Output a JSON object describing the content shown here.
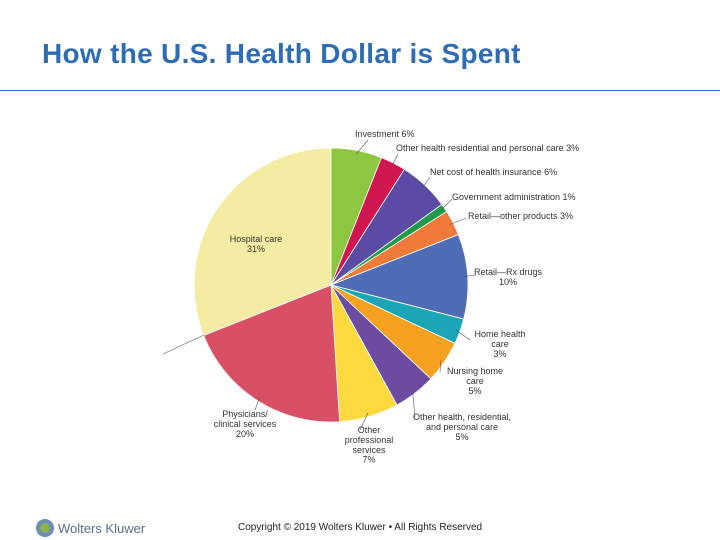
{
  "slide": {
    "title": "How the U.S. Health Dollar is Spent",
    "copyright": "Copyright © 2019 Wolters Kluwer • All Rights Reserved",
    "logo_text": "Wolters Kluwer",
    "accent_color": "#2e6db4"
  },
  "chart_data": {
    "type": "pie",
    "title": "",
    "start_angle_deg": 0,
    "direction": "clockwise",
    "slices": [
      {
        "label": "Investment",
        "value": 6,
        "color": "#8dc63f",
        "text": [
          "Investment 6%"
        ]
      },
      {
        "label": "Other health residential and personal care",
        "value": 3,
        "color": "#d0164e",
        "text": [
          "Other health residential and personal care 3%"
        ]
      },
      {
        "label": "Net cost of health insurance",
        "value": 6,
        "color": "#5b4ba5",
        "text": [
          "Net cost of health insurance 6%"
        ]
      },
      {
        "label": "Government administration",
        "value": 1,
        "color": "#1f9a4a",
        "text": [
          "Government administration 1%"
        ]
      },
      {
        "label": "Retail—other products",
        "value": 3,
        "color": "#f07a3a",
        "text": [
          "Retail—other products 3%"
        ]
      },
      {
        "label": "Retail—Rx drugs",
        "value": 10,
        "color": "#4f6db6",
        "text": [
          "Retail—Rx drugs",
          "10%"
        ]
      },
      {
        "label": "Home health care",
        "value": 3,
        "color": "#1ba6b8",
        "text": [
          "Home health",
          "care",
          "3%"
        ]
      },
      {
        "label": "Nursing home care",
        "value": 5,
        "color": "#f6a11f",
        "text": [
          "Nursing home",
          "care",
          "5%"
        ]
      },
      {
        "label": "Other health, residential, and personal care",
        "value": 5,
        "color": "#6c4ba1",
        "text": [
          "Other health, residential,",
          "and personal care",
          "5%"
        ]
      },
      {
        "label": "Other professional services",
        "value": 7,
        "color": "#fcd93f",
        "text": [
          "Other",
          "professional",
          "services",
          "7%"
        ]
      },
      {
        "label": "Physicians/clinical services",
        "value": 20,
        "color": "#d94f66",
        "text": [
          "Physicians/",
          "clinical services",
          "20%"
        ]
      },
      {
        "label": "Hospital care",
        "value": 31,
        "color": "#f4eca2",
        "text": [
          "Hospital care",
          "31%"
        ]
      }
    ]
  }
}
